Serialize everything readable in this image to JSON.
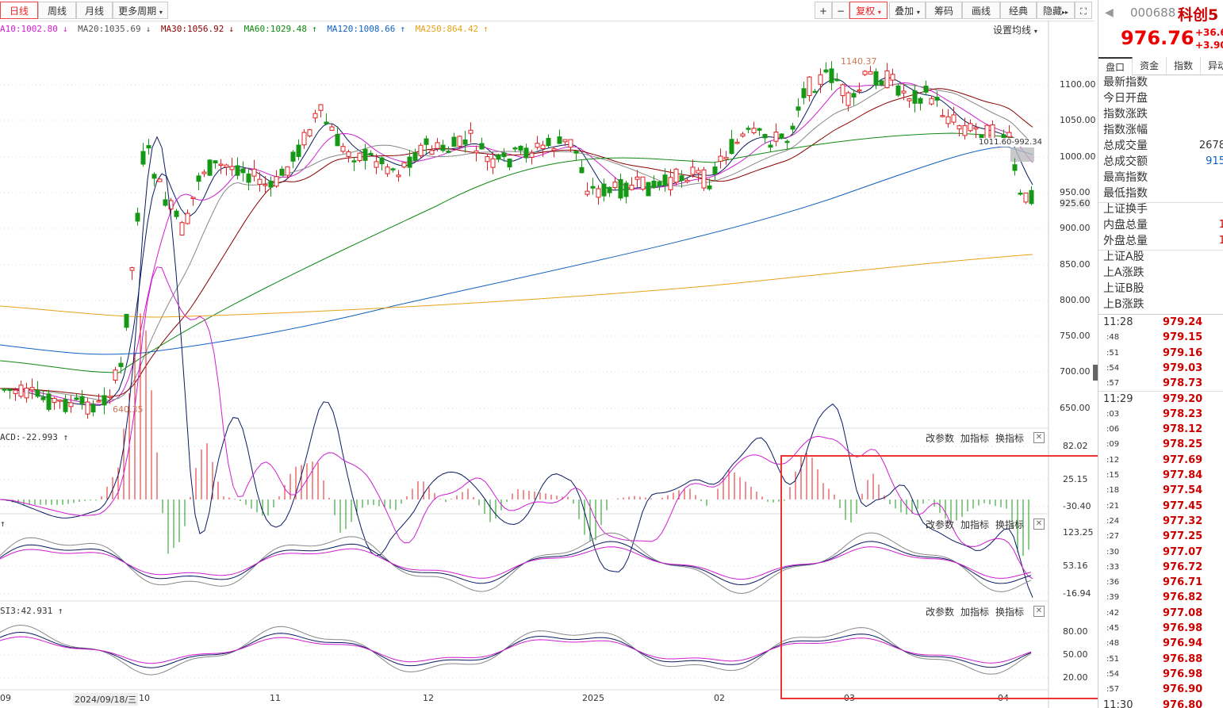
{
  "toolbar": {
    "periods": [
      "日线",
      "周线",
      "月线",
      "更多周期"
    ],
    "tools": [
      "复权",
      "叠加",
      "筹码",
      "画线",
      "经典",
      "隐藏"
    ]
  },
  "ma_legend": {
    "ma10": "A10:1002.80",
    "ma20": "MA20:1035.69",
    "ma30": "MA30:1056.92",
    "ma60": "MA60:1029.48",
    "ma120": "MA120:1008.66",
    "ma250": "MA250:864.42",
    "set_label": "设置均线"
  },
  "colors": {
    "ma10": "#d01ed0",
    "ma20": "#666666",
    "ma30": "#8b0000",
    "ma60": "#118811",
    "ma120": "#1060c0",
    "ma250": "#e8a317",
    "up": "#e02020",
    "down": "#169816"
  },
  "price_axis": [
    "1100.00",
    "1050.00",
    "1000.00",
    "950.00",
    "925.60",
    "900.00",
    "850.00",
    "800.00",
    "750.00",
    "700.00",
    "650.00"
  ],
  "annotations": {
    "high": "1140.37",
    "low": "640.35",
    "tag": "1011.60-992.34"
  },
  "indicators": [
    {
      "label": "ACD:-22.993",
      "axis": [
        "82.02",
        "25.15",
        "-30.40"
      ],
      "buttons": [
        "改参数",
        "加指标",
        "换指标"
      ]
    },
    {
      "label": "",
      "axis": [
        "123.25",
        "53.16",
        "-16.94"
      ],
      "buttons": [
        "改参数",
        "加指标",
        "换指标"
      ]
    },
    {
      "label": "SI3:42.931",
      "axis": [
        "80.00",
        "50.00",
        "20.00"
      ],
      "buttons": [
        "改参数",
        "加指标",
        "换指标"
      ]
    }
  ],
  "xaxis": [
    "09",
    "2024/09/18/三",
    "10",
    "11",
    "12",
    "2025",
    "02",
    "03",
    "04"
  ],
  "quote": {
    "code": "000688",
    "name": "科创5",
    "price": "976.76",
    "change": "+36.6",
    "pct": "+3.90",
    "tabs": [
      "盘口",
      "资金",
      "指数",
      "异动"
    ],
    "rows": [
      {
        "label": "最新指数",
        "value": ""
      },
      {
        "label": "今日开盘",
        "value": ""
      },
      {
        "label": "指数涨跌",
        "value": ""
      },
      {
        "label": "指数涨幅",
        "value": ""
      },
      {
        "label": "总成交量",
        "value": "2678"
      },
      {
        "label": "总成交额",
        "value": "915"
      },
      {
        "label": "最高指数",
        "value": ""
      },
      {
        "label": "最低指数",
        "value": ""
      },
      {
        "label": "上证换手",
        "value": ""
      },
      {
        "label": "内盘总量",
        "value": "1"
      },
      {
        "label": "外盘总量",
        "value": "1"
      },
      {
        "label": "上证A股",
        "value": ""
      },
      {
        "label": "上A涨跌",
        "value": ""
      },
      {
        "label": "上证B股",
        "value": ""
      },
      {
        "label": "上B涨跌",
        "value": ""
      }
    ],
    "ticks": [
      {
        "time": "11:28",
        "price": "979.24"
      },
      {
        "time": ":48",
        "price": "979.15"
      },
      {
        "time": ":51",
        "price": "979.16"
      },
      {
        "time": ":54",
        "price": "979.03"
      },
      {
        "time": ":57",
        "price": "978.73"
      },
      {
        "time": "11:29",
        "price": "979.20"
      },
      {
        "time": ":03",
        "price": "978.23"
      },
      {
        "time": ":06",
        "price": "978.12"
      },
      {
        "time": ":09",
        "price": "978.25"
      },
      {
        "time": ":12",
        "price": "977.69"
      },
      {
        "time": ":15",
        "price": "977.84"
      },
      {
        "time": ":18",
        "price": "977.54"
      },
      {
        "time": ":21",
        "price": "977.45"
      },
      {
        "time": ":24",
        "price": "977.32"
      },
      {
        "time": ":27",
        "price": "977.25"
      },
      {
        "time": ":30",
        "price": "977.07"
      },
      {
        "time": ":33",
        "price": "976.72"
      },
      {
        "time": ":36",
        "price": "976.71"
      },
      {
        "time": ":39",
        "price": "976.82"
      },
      {
        "time": ":42",
        "price": "977.08"
      },
      {
        "time": ":45",
        "price": "976.98"
      },
      {
        "time": ":48",
        "price": "976.94"
      },
      {
        "time": ":51",
        "price": "976.88"
      },
      {
        "time": ":54",
        "price": "976.98"
      },
      {
        "time": ":57",
        "price": "976.90"
      },
      {
        "time": "11:30",
        "price": "976.80"
      }
    ]
  }
}
